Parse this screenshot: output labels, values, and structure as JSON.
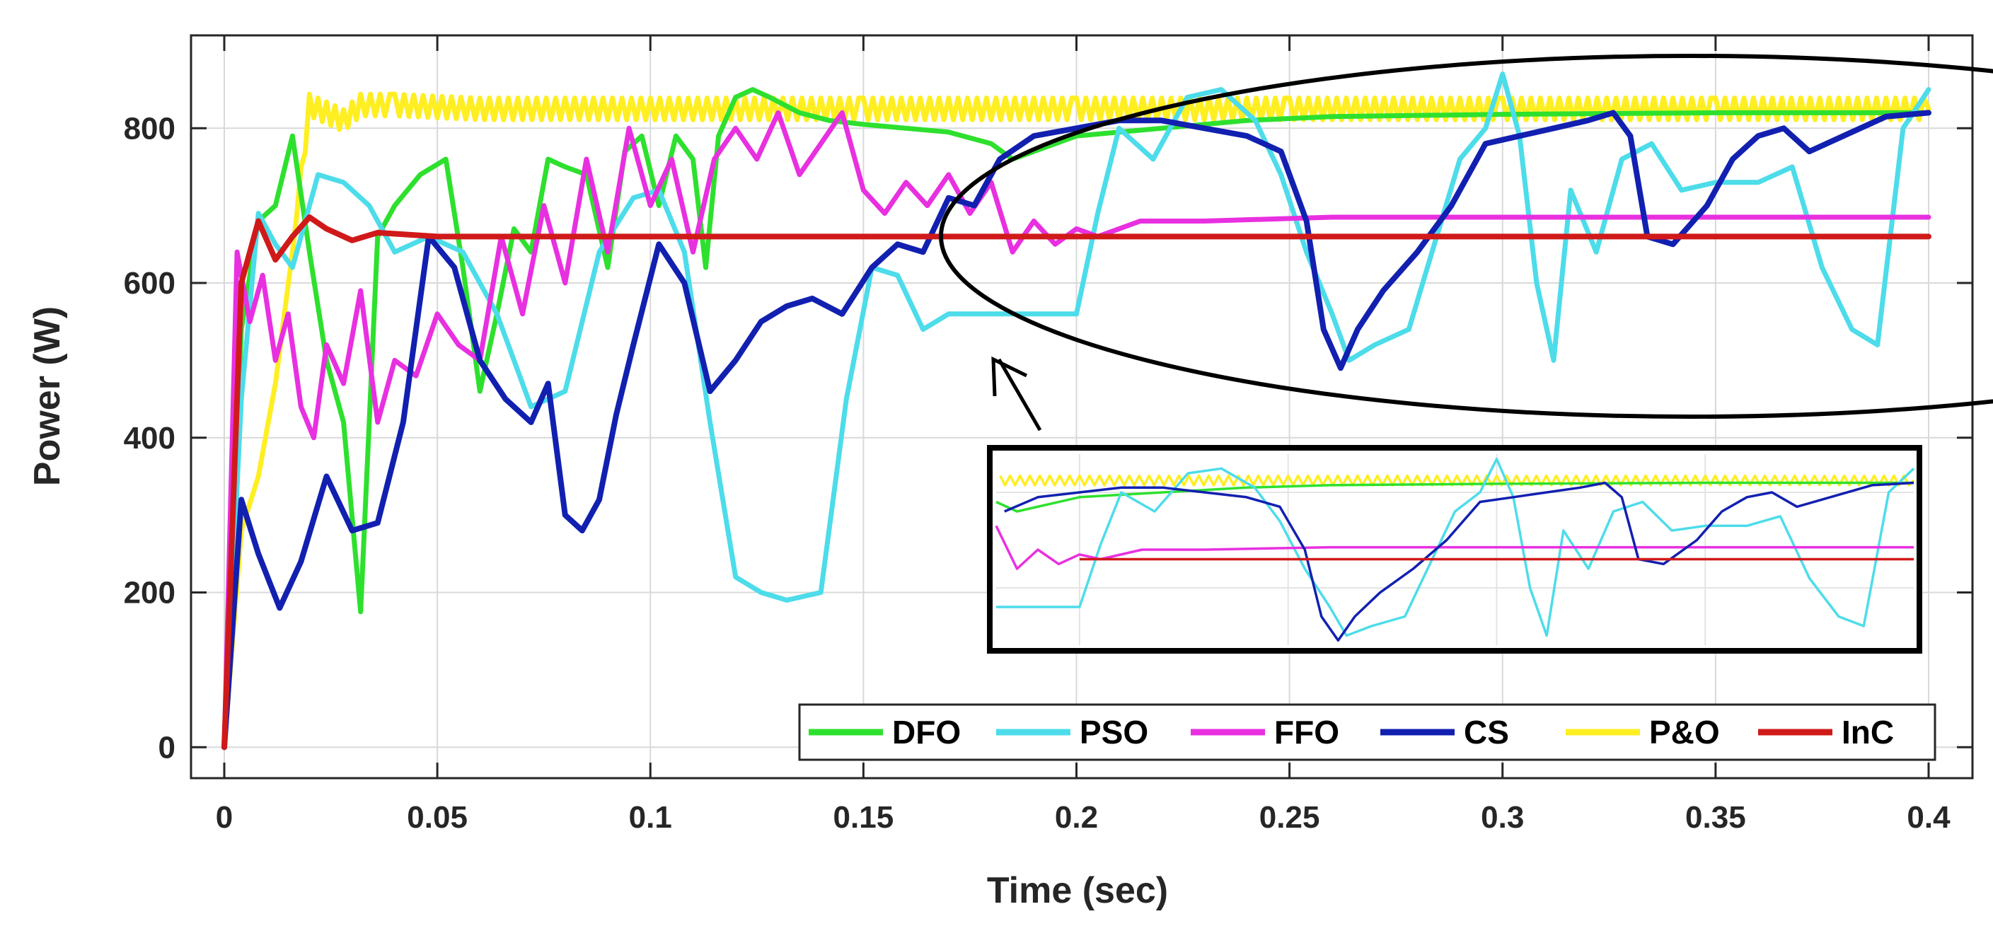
{
  "chart_data": {
    "type": "line",
    "title": "",
    "xlabel": "Time (sec)",
    "ylabel": "Power (W)",
    "xlim": [
      0,
      0.4
    ],
    "ylim": [
      -40,
      920
    ],
    "grid": true,
    "legend_position": "bottom-right",
    "xticks": [
      0,
      0.05,
      0.1,
      0.15,
      0.2,
      0.25,
      0.3,
      0.35,
      0.4
    ],
    "xtick_labels": [
      "0",
      "0.05",
      "0.1",
      "0.15",
      "0.2",
      "0.25",
      "0.3",
      "0.35",
      "0.4"
    ],
    "yticks": [
      0,
      200,
      400,
      600,
      800
    ],
    "ytick_labels": [
      "0",
      "200",
      "400",
      "600",
      "800"
    ],
    "series": [
      {
        "name": "DFO",
        "color": "#2ee02e",
        "width": 7,
        "x": [
          0,
          0.004,
          0.008,
          0.012,
          0.016,
          0.02,
          0.024,
          0.028,
          0.032,
          0.036,
          0.04,
          0.046,
          0.052,
          0.056,
          0.06,
          0.064,
          0.068,
          0.072,
          0.076,
          0.08,
          0.085,
          0.09,
          0.094,
          0.098,
          0.102,
          0.106,
          0.11,
          0.113,
          0.116,
          0.12,
          0.124,
          0.128,
          0.135,
          0.142,
          0.15,
          0.16,
          0.17,
          0.18,
          0.185,
          0.2,
          0.22,
          0.24,
          0.26,
          0.3,
          0.35,
          0.4
        ],
        "y": [
          0,
          540,
          680,
          700,
          790,
          640,
          500,
          420,
          175,
          660,
          700,
          740,
          760,
          620,
          460,
          560,
          670,
          640,
          760,
          750,
          740,
          620,
          770,
          790,
          700,
          790,
          760,
          620,
          790,
          840,
          850,
          840,
          820,
          810,
          805,
          800,
          795,
          780,
          760,
          790,
          800,
          810,
          815,
          818,
          820,
          820
        ]
      },
      {
        "name": "PSO",
        "color": "#4ddcea",
        "width": 7,
        "x": [
          0,
          0.004,
          0.008,
          0.012,
          0.016,
          0.022,
          0.028,
          0.034,
          0.04,
          0.048,
          0.056,
          0.064,
          0.072,
          0.08,
          0.088,
          0.096,
          0.102,
          0.108,
          0.114,
          0.12,
          0.126,
          0.132,
          0.14,
          0.146,
          0.152,
          0.158,
          0.164,
          0.17,
          0.18,
          0.19,
          0.2,
          0.205,
          0.21,
          0.218,
          0.226,
          0.234,
          0.242,
          0.248,
          0.254,
          0.26,
          0.264,
          0.27,
          0.278,
          0.284,
          0.29,
          0.296,
          0.3,
          0.304,
          0.308,
          0.312,
          0.316,
          0.322,
          0.328,
          0.335,
          0.342,
          0.35,
          0.36,
          0.368,
          0.375,
          0.382,
          0.388,
          0.394,
          0.4
        ],
        "y": [
          0,
          450,
          690,
          650,
          620,
          740,
          730,
          700,
          640,
          660,
          640,
          560,
          440,
          460,
          640,
          710,
          720,
          640,
          420,
          220,
          200,
          190,
          200,
          450,
          620,
          610,
          540,
          560,
          560,
          560,
          560,
          690,
          800,
          760,
          840,
          850,
          810,
          740,
          640,
          560,
          500,
          520,
          540,
          650,
          760,
          800,
          870,
          790,
          600,
          500,
          720,
          640,
          760,
          780,
          720,
          730,
          730,
          750,
          620,
          540,
          520,
          800,
          850
        ]
      },
      {
        "name": "FFO",
        "color": "#e830e0",
        "width": 7,
        "x": [
          0,
          0.003,
          0.006,
          0.009,
          0.012,
          0.015,
          0.018,
          0.021,
          0.024,
          0.028,
          0.032,
          0.036,
          0.04,
          0.045,
          0.05,
          0.055,
          0.06,
          0.065,
          0.07,
          0.075,
          0.08,
          0.085,
          0.09,
          0.095,
          0.1,
          0.105,
          0.11,
          0.115,
          0.12,
          0.125,
          0.13,
          0.135,
          0.14,
          0.145,
          0.15,
          0.155,
          0.16,
          0.165,
          0.17,
          0.175,
          0.18,
          0.185,
          0.19,
          0.195,
          0.2,
          0.205,
          0.215,
          0.23,
          0.26,
          0.3,
          0.35,
          0.4
        ],
        "y": [
          0,
          640,
          550,
          610,
          500,
          560,
          440,
          400,
          520,
          470,
          590,
          420,
          500,
          480,
          560,
          520,
          500,
          660,
          560,
          700,
          600,
          760,
          640,
          800,
          700,
          760,
          640,
          760,
          800,
          760,
          820,
          740,
          780,
          820,
          720,
          690,
          730,
          700,
          740,
          690,
          730,
          640,
          680,
          650,
          670,
          660,
          680,
          680,
          685,
          685,
          685,
          685
        ]
      },
      {
        "name": "CS",
        "color": "#1220b0",
        "width": 8,
        "x": [
          0,
          0.004,
          0.008,
          0.013,
          0.018,
          0.024,
          0.03,
          0.036,
          0.042,
          0.048,
          0.054,
          0.06,
          0.066,
          0.072,
          0.076,
          0.08,
          0.084,
          0.088,
          0.092,
          0.096,
          0.102,
          0.108,
          0.114,
          0.12,
          0.126,
          0.132,
          0.138,
          0.145,
          0.152,
          0.158,
          0.164,
          0.17,
          0.176,
          0.182,
          0.19,
          0.2,
          0.21,
          0.22,
          0.23,
          0.24,
          0.248,
          0.254,
          0.258,
          0.262,
          0.266,
          0.272,
          0.28,
          0.288,
          0.296,
          0.304,
          0.312,
          0.32,
          0.326,
          0.33,
          0.334,
          0.34,
          0.348,
          0.354,
          0.36,
          0.366,
          0.372,
          0.38,
          0.39,
          0.4
        ],
        "y": [
          0,
          320,
          250,
          180,
          240,
          350,
          280,
          290,
          420,
          660,
          620,
          500,
          450,
          420,
          470,
          300,
          280,
          320,
          430,
          520,
          650,
          600,
          460,
          500,
          550,
          570,
          580,
          560,
          620,
          650,
          640,
          710,
          700,
          760,
          790,
          800,
          810,
          810,
          800,
          790,
          770,
          680,
          540,
          490,
          540,
          590,
          640,
          700,
          780,
          790,
          800,
          810,
          820,
          790,
          660,
          650,
          700,
          760,
          790,
          800,
          770,
          790,
          815,
          820
        ]
      },
      {
        "name": "P&O",
        "color": "#ffee22",
        "width": 7,
        "x": [
          0,
          0.004,
          0.008,
          0.012,
          0.016,
          0.02,
          0.024,
          0.028,
          0.032,
          0.04,
          0.06,
          0.1,
          0.15,
          0.2,
          0.25,
          0.3,
          0.35,
          0.4
        ],
        "y": [
          0,
          280,
          350,
          470,
          640,
          830,
          820,
          810,
          830,
          830,
          825,
          825,
          825,
          825,
          825,
          825,
          825,
          825
        ]
      },
      {
        "name": "InC",
        "color": "#d01a1a",
        "width": 8,
        "x": [
          0,
          0.004,
          0.008,
          0.012,
          0.016,
          0.02,
          0.024,
          0.03,
          0.036,
          0.05,
          0.1,
          0.2,
          0.3,
          0.4
        ],
        "y": [
          0,
          600,
          680,
          630,
          660,
          685,
          670,
          655,
          665,
          660,
          660,
          660,
          660,
          660
        ]
      }
    ]
  },
  "annotations": {
    "zoom_ellipse": "highlighted region",
    "zoom_inset": "magnified view"
  },
  "colors": {
    "axis": "#262626",
    "grid": "#d9d9d9",
    "background": "#ffffff"
  }
}
